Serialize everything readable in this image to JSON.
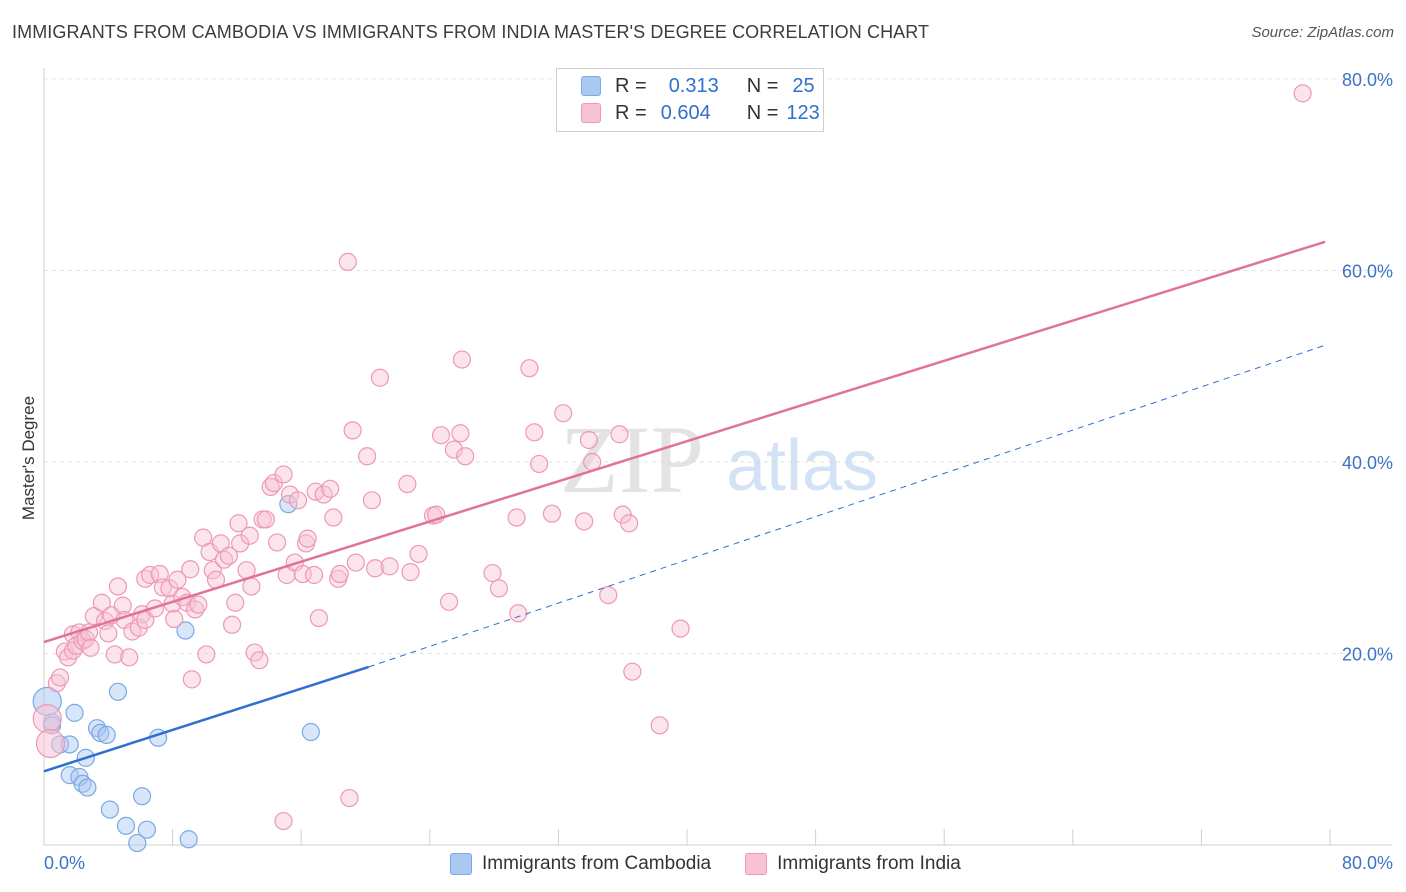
{
  "title": "IMMIGRANTS FROM CAMBODIA VS IMMIGRANTS FROM INDIA MASTER'S DEGREE CORRELATION CHART",
  "source": "Source: ZipAtlas.com",
  "watermark": {
    "zip": "ZIP",
    "atlas": "atlas"
  },
  "legend_top": [
    {
      "r_label": "R =",
      "r_value": "0.313",
      "n_label": "N =",
      "n_value": "25",
      "color": "#a9c8f2",
      "border": "#7aa9e6"
    },
    {
      "r_label": "R =",
      "r_value": "0.604",
      "n_label": "N =",
      "n_value": "123",
      "color": "#f7c3d4",
      "border": "#ee98b5"
    }
  ],
  "legend_bottom": [
    {
      "label": "Immigrants from Cambodia",
      "color": "#a9c8f2",
      "border": "#7aa9e6"
    },
    {
      "label": "Immigrants from India",
      "color": "#f7c3d4",
      "border": "#ee98b5"
    }
  ],
  "chart_data": {
    "type": "scatter",
    "title": "IMMIGRANTS FROM CAMBODIA VS IMMIGRANTS FROM INDIA MASTER'S DEGREE CORRELATION CHART",
    "xlabel": "",
    "ylabel": "Master's Degree",
    "xlim": [
      0,
      80
    ],
    "ylim": [
      0,
      80
    ],
    "x_tick_labels": [
      "0.0%",
      "80.0%"
    ],
    "y_tick_labels": [
      {
        "value": 20,
        "label": "20.0%"
      },
      {
        "value": 40,
        "label": "40.0%"
      },
      {
        "value": 60,
        "label": "60.0%"
      },
      {
        "value": 80,
        "label": "80.0%"
      }
    ],
    "grid": true,
    "series": [
      {
        "name": "Immigrants from Cambodia",
        "color": "#a9c8f2",
        "line_color": "#2f6fd0",
        "trend": {
          "x0": 0,
          "y0": 7.7,
          "x1": 20.2,
          "y1": 18.6,
          "dashed_to_x": 79.7,
          "dashed_to_y": 52.2
        },
        "points": [
          [
            0.2,
            15.0,
            1
          ],
          [
            0.5,
            12.8,
            0
          ],
          [
            1.0,
            10.5,
            0
          ],
          [
            1.6,
            7.3,
            0
          ],
          [
            1.6,
            10.5,
            0
          ],
          [
            1.9,
            13.8,
            0
          ],
          [
            2.2,
            7.1,
            0
          ],
          [
            2.4,
            6.4,
            0
          ],
          [
            2.6,
            9.1,
            0
          ],
          [
            2.7,
            6.0,
            0
          ],
          [
            3.3,
            12.2,
            0
          ],
          [
            3.5,
            11.7,
            0
          ],
          [
            3.9,
            11.5,
            0
          ],
          [
            4.6,
            16.0,
            0
          ],
          [
            4.1,
            3.7,
            0
          ],
          [
            5.1,
            2.0,
            0
          ],
          [
            6.1,
            5.1,
            0
          ],
          [
            6.4,
            1.6,
            0
          ],
          [
            5.8,
            0.2,
            0
          ],
          [
            7.1,
            11.2,
            0
          ],
          [
            8.8,
            22.4,
            0
          ],
          [
            9.0,
            0.6,
            0
          ],
          [
            15.2,
            35.6,
            0
          ],
          [
            16.6,
            11.8,
            0
          ],
          [
            0.5,
            12.5,
            0
          ]
        ]
      },
      {
        "name": "Immigrants from India",
        "color": "#f7c3d4",
        "line_color": "#e2729a",
        "trend": {
          "x0": 0,
          "y0": 21.2,
          "x1": 79.7,
          "y1": 63.0
        },
        "points": [
          [
            0.2,
            13.2,
            1
          ],
          [
            0.4,
            10.6,
            1
          ],
          [
            0.8,
            16.9,
            0
          ],
          [
            1.0,
            17.5,
            0
          ],
          [
            1.3,
            20.2,
            0
          ],
          [
            1.5,
            19.6,
            0
          ],
          [
            1.8,
            20.3,
            0
          ],
          [
            1.8,
            22.0,
            0
          ],
          [
            2.0,
            20.8,
            0
          ],
          [
            2.2,
            22.2,
            0
          ],
          [
            2.4,
            21.3,
            0
          ],
          [
            2.6,
            21.5,
            0
          ],
          [
            2.8,
            22.2,
            0
          ],
          [
            2.9,
            20.6,
            0
          ],
          [
            3.1,
            23.9,
            0
          ],
          [
            3.6,
            25.3,
            0
          ],
          [
            3.8,
            23.4,
            0
          ],
          [
            4.0,
            22.1,
            0
          ],
          [
            4.2,
            24.0,
            0
          ],
          [
            4.4,
            19.9,
            0
          ],
          [
            4.6,
            27.0,
            0
          ],
          [
            4.9,
            25.0,
            0
          ],
          [
            5.0,
            23.5,
            0
          ],
          [
            5.3,
            19.6,
            0
          ],
          [
            5.5,
            22.3,
            0
          ],
          [
            5.9,
            22.7,
            0
          ],
          [
            6.1,
            24.1,
            0
          ],
          [
            6.3,
            23.5,
            0
          ],
          [
            6.3,
            27.8,
            0
          ],
          [
            6.6,
            28.2,
            0
          ],
          [
            6.9,
            24.7,
            0
          ],
          [
            7.2,
            28.3,
            0
          ],
          [
            7.4,
            26.9,
            0
          ],
          [
            7.8,
            26.8,
            0
          ],
          [
            8.0,
            25.2,
            0
          ],
          [
            8.1,
            23.6,
            0
          ],
          [
            8.3,
            27.7,
            0
          ],
          [
            8.6,
            25.9,
            0
          ],
          [
            8.9,
            25.3,
            0
          ],
          [
            9.1,
            28.8,
            0
          ],
          [
            9.2,
            17.3,
            0
          ],
          [
            9.4,
            24.6,
            0
          ],
          [
            9.6,
            25.1,
            0
          ],
          [
            9.9,
            32.1,
            0
          ],
          [
            10.1,
            19.9,
            0
          ],
          [
            10.3,
            30.6,
            0
          ],
          [
            10.5,
            28.7,
            0
          ],
          [
            10.7,
            27.7,
            0
          ],
          [
            11.0,
            31.5,
            0
          ],
          [
            11.2,
            29.8,
            0
          ],
          [
            11.5,
            30.2,
            0
          ],
          [
            11.7,
            23.0,
            0
          ],
          [
            11.9,
            25.3,
            0
          ],
          [
            12.1,
            33.6,
            0
          ],
          [
            12.2,
            31.5,
            0
          ],
          [
            12.6,
            28.7,
            0
          ],
          [
            12.8,
            32.3,
            0
          ],
          [
            12.9,
            27.0,
            0
          ],
          [
            13.1,
            20.1,
            0
          ],
          [
            13.4,
            19.3,
            0
          ],
          [
            13.6,
            34.0,
            0
          ],
          [
            13.8,
            34.0,
            0
          ],
          [
            14.1,
            37.4,
            0
          ],
          [
            14.3,
            37.8,
            0
          ],
          [
            14.5,
            31.6,
            0
          ],
          [
            14.9,
            38.7,
            0
          ],
          [
            14.9,
            2.5,
            0
          ],
          [
            15.1,
            28.2,
            0
          ],
          [
            15.3,
            36.6,
            0
          ],
          [
            15.6,
            29.5,
            0
          ],
          [
            15.8,
            36.0,
            0
          ],
          [
            16.1,
            28.3,
            0
          ],
          [
            16.3,
            31.5,
            0
          ],
          [
            16.4,
            32.0,
            0
          ],
          [
            16.8,
            28.2,
            0
          ],
          [
            16.9,
            36.9,
            0
          ],
          [
            17.1,
            23.7,
            0
          ],
          [
            17.4,
            36.6,
            0
          ],
          [
            17.8,
            37.2,
            0
          ],
          [
            18.0,
            34.2,
            0
          ],
          [
            18.3,
            27.8,
            0
          ],
          [
            18.4,
            28.3,
            0
          ],
          [
            18.9,
            60.9,
            0
          ],
          [
            19.0,
            4.9,
            0
          ],
          [
            19.2,
            43.3,
            0
          ],
          [
            19.4,
            29.5,
            0
          ],
          [
            20.1,
            40.6,
            0
          ],
          [
            20.4,
            36.0,
            0
          ],
          [
            20.6,
            28.9,
            0
          ],
          [
            20.9,
            48.8,
            0
          ],
          [
            21.5,
            29.1,
            0
          ],
          [
            22.6,
            37.7,
            0
          ],
          [
            22.8,
            28.5,
            0
          ],
          [
            23.3,
            30.4,
            0
          ],
          [
            24.2,
            34.4,
            0
          ],
          [
            24.7,
            42.8,
            0
          ],
          [
            25.2,
            25.4,
            0
          ],
          [
            25.5,
            41.3,
            0
          ],
          [
            24.4,
            34.5,
            0
          ],
          [
            25.9,
            43.0,
            0
          ],
          [
            26.0,
            50.7,
            0
          ],
          [
            26.2,
            40.6,
            0
          ],
          [
            27.9,
            28.4,
            0
          ],
          [
            28.3,
            26.8,
            0
          ],
          [
            29.4,
            34.2,
            0
          ],
          [
            29.5,
            24.2,
            0
          ],
          [
            30.2,
            49.8,
            0
          ],
          [
            30.5,
            43.1,
            0
          ],
          [
            30.8,
            39.8,
            0
          ],
          [
            31.6,
            34.6,
            0
          ],
          [
            32.3,
            45.1,
            0
          ],
          [
            33.6,
            33.8,
            0
          ],
          [
            33.9,
            42.3,
            0
          ],
          [
            34.1,
            40.0,
            0
          ],
          [
            35.1,
            26.1,
            0
          ],
          [
            35.8,
            42.9,
            0
          ],
          [
            36.0,
            34.5,
            0
          ],
          [
            36.4,
            33.6,
            0
          ],
          [
            36.6,
            18.1,
            0
          ],
          [
            38.3,
            12.5,
            0
          ],
          [
            39.6,
            22.6,
            0
          ],
          [
            78.3,
            78.5,
            0
          ]
        ]
      }
    ]
  }
}
